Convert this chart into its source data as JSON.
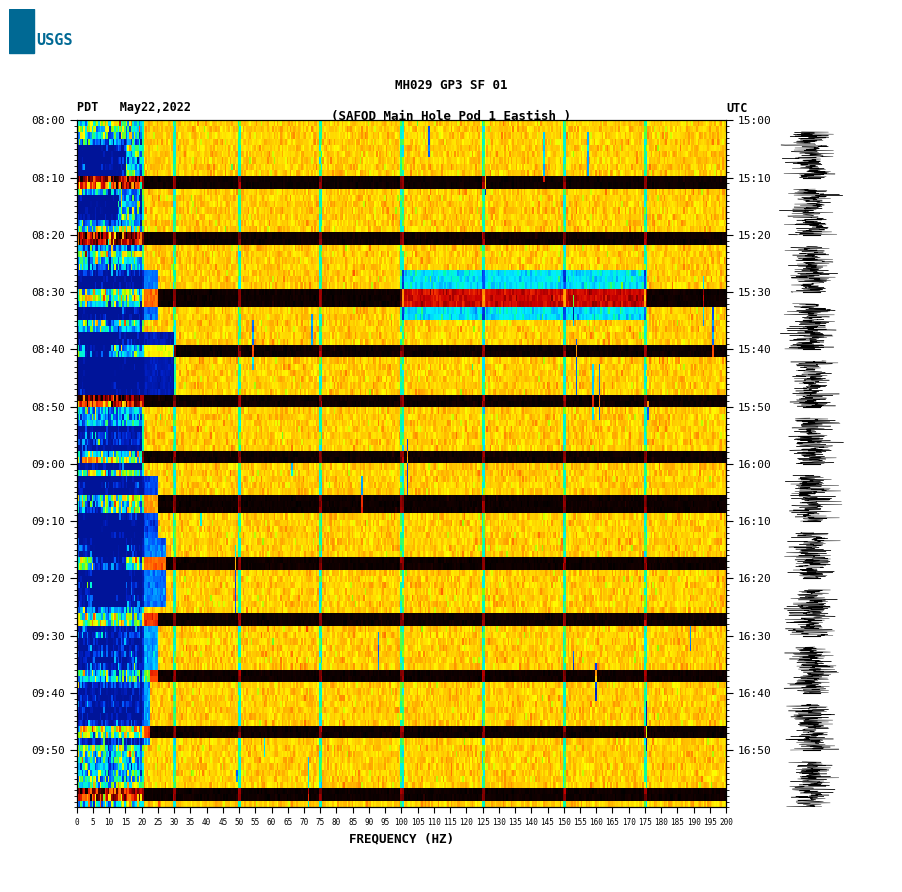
{
  "title_line1": "MH029 GP3 SF 01",
  "title_line2": "(SAFOD Main Hole Pod 1 Eastish )",
  "date_label": "PDT   May22,2022",
  "utc_label": "UTC",
  "freq_label": "FREQUENCY (HZ)",
  "left_times": [
    "08:00",
    "08:10",
    "08:20",
    "08:30",
    "08:40",
    "08:50",
    "09:00",
    "09:10",
    "09:20",
    "09:30",
    "09:40",
    "09:50"
  ],
  "right_times": [
    "15:00",
    "15:10",
    "15:20",
    "15:30",
    "15:40",
    "15:50",
    "16:00",
    "16:10",
    "16:20",
    "16:30",
    "16:40",
    "16:50"
  ],
  "freq_ticks": [
    0,
    5,
    10,
    15,
    20,
    25,
    30,
    35,
    40,
    45,
    50,
    55,
    60,
    65,
    70,
    75,
    80,
    85,
    90,
    95,
    100,
    105,
    110,
    115,
    120,
    125,
    130,
    135,
    140,
    145,
    150,
    155,
    160,
    165,
    170,
    175,
    180,
    185,
    190,
    195,
    200
  ],
  "n_time_rows": 110,
  "n_freq_cols": 400,
  "bg_color": "#ffffff",
  "fig_width": 9.02,
  "fig_height": 8.92,
  "dpi": 100
}
